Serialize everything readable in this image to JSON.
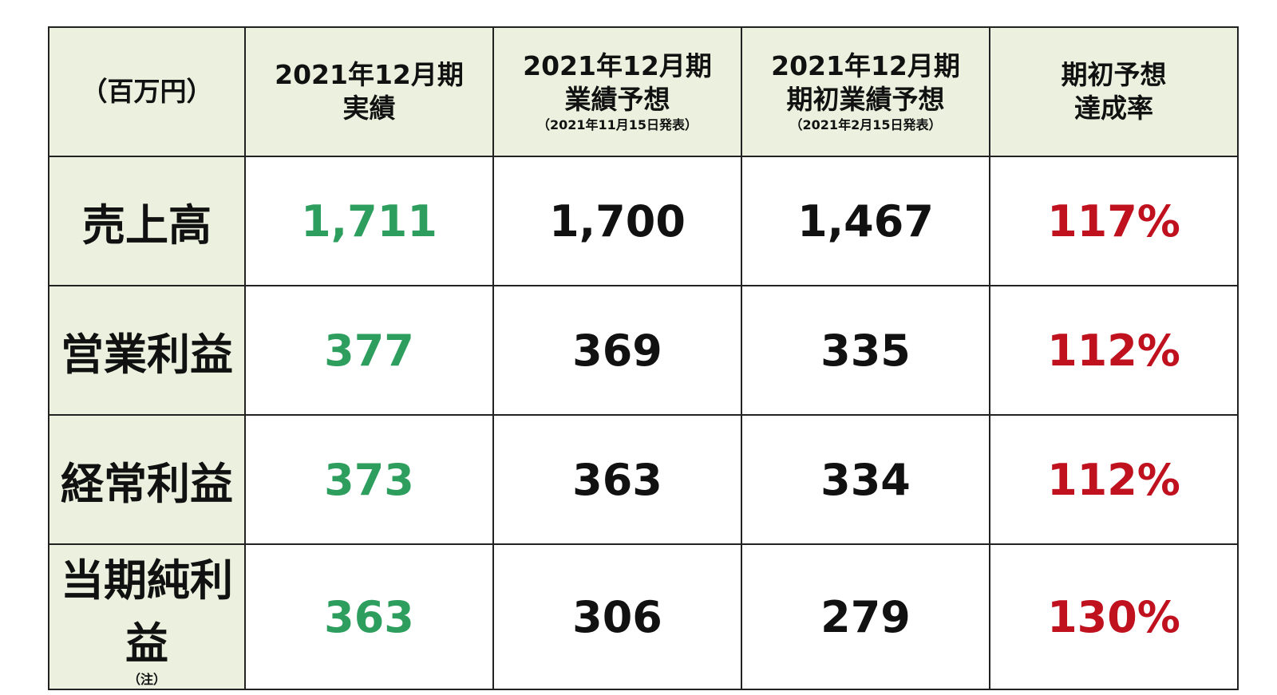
{
  "table": {
    "header": [
      {
        "lines": [
          "（百万円）"
        ]
      },
      {
        "lines": [
          "2021年12月期",
          "実績"
        ]
      },
      {
        "lines": [
          "2021年12月期",
          "業績予想"
        ],
        "note": "（2021年11月15日発表）"
      },
      {
        "lines": [
          "2021年12月期",
          "期初業績予想"
        ],
        "note": "（2021年2月15日発表）"
      },
      {
        "lines": [
          "期初予想",
          "達成率"
        ]
      }
    ],
    "rows": [
      {
        "label": "売上高",
        "cells": [
          "1,711",
          "1,700",
          "1,467",
          "117%"
        ]
      },
      {
        "label": "営業利益",
        "cells": [
          "377",
          "369",
          "335",
          "112%"
        ]
      },
      {
        "label": "経常利益",
        "cells": [
          "373",
          "363",
          "334",
          "112%"
        ]
      },
      {
        "label": "当期純利益",
        "note": "（注）",
        "cells": [
          "363",
          "306",
          "279",
          "130%"
        ]
      }
    ]
  }
}
